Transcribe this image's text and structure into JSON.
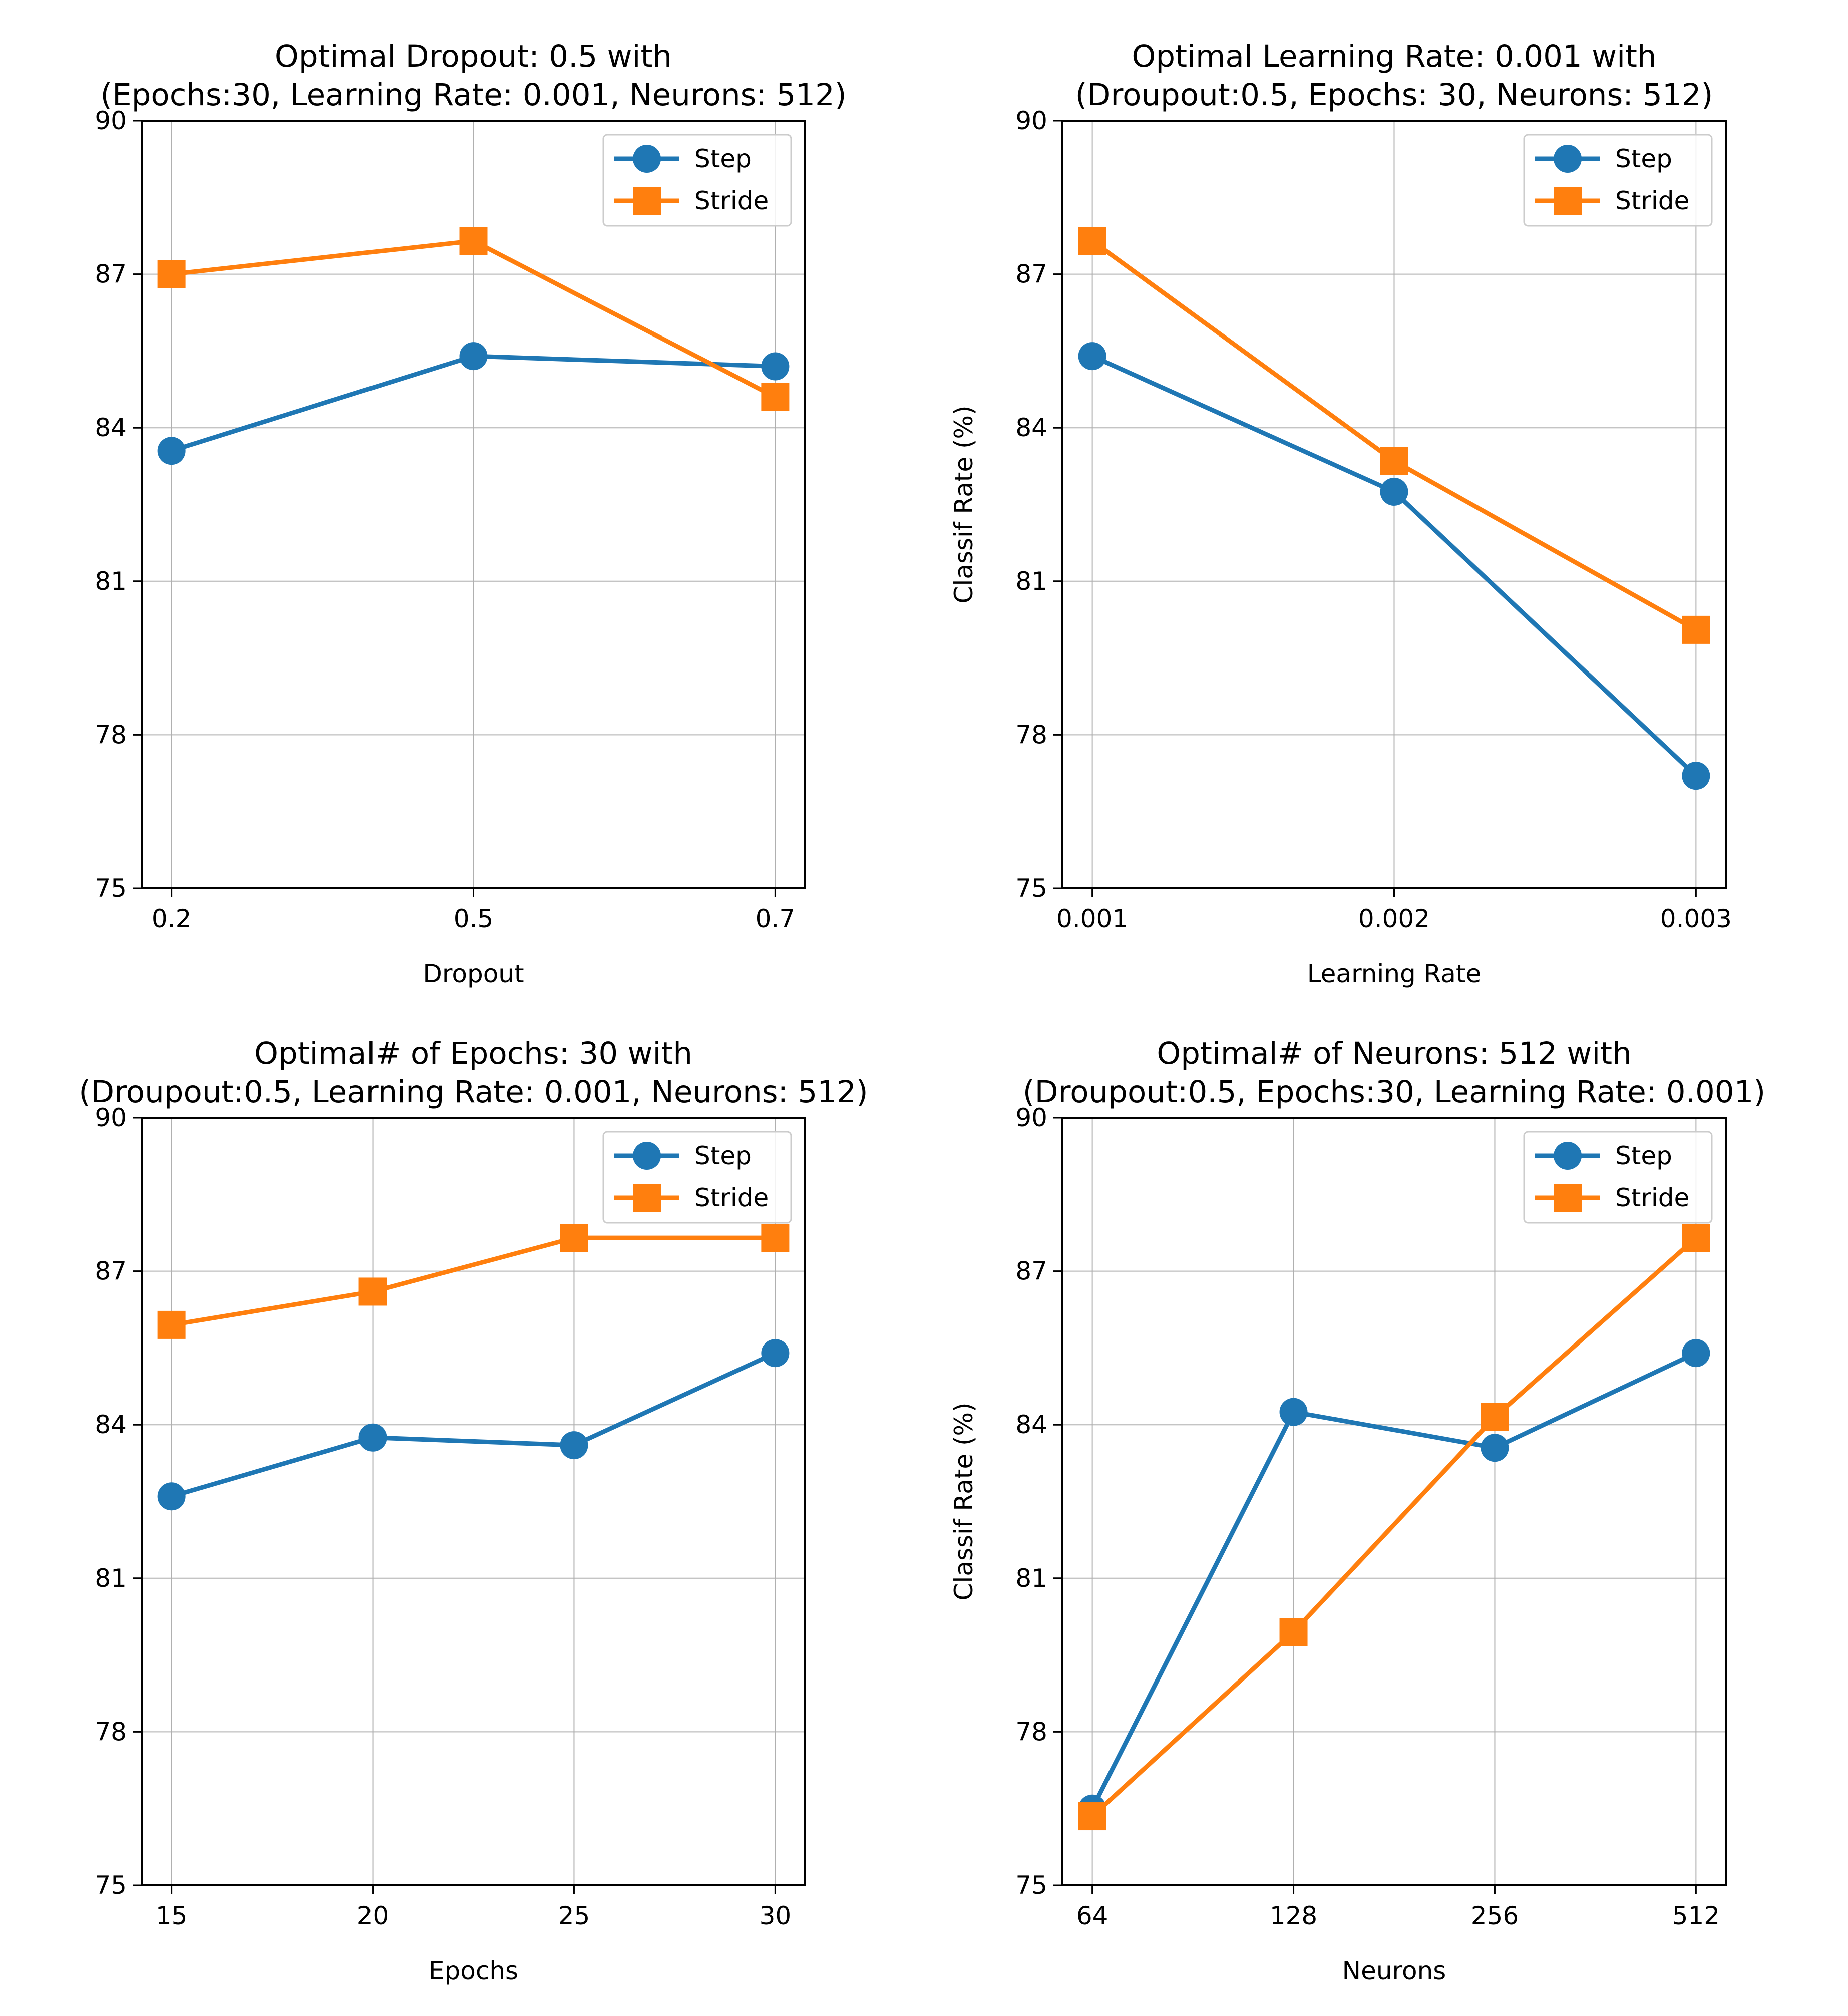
{
  "chart_data": [
    {
      "type": "line",
      "title": [
        "Optimal Dropout: 0.5 with",
        "(Epochs:30, Learning Rate: 0.001, Neurons: 512)"
      ],
      "xlabel": "Dropout",
      "ylabel": "",
      "categories": [
        "0.2",
        "0.5",
        "0.7"
      ],
      "ylim": [
        75,
        90
      ],
      "yticks": [
        75,
        78,
        81,
        84,
        87,
        90
      ],
      "grid": true,
      "legend_position": "top-right",
      "series": [
        {
          "name": "Step",
          "marker": "circle",
          "color": "#1f77b4",
          "values": [
            83.55,
            85.4,
            85.2
          ]
        },
        {
          "name": "Stride",
          "marker": "square",
          "color": "#ff7f0e",
          "values": [
            87.0,
            87.65,
            84.6
          ]
        }
      ]
    },
    {
      "type": "line",
      "title": [
        "Optimal Learning Rate: 0.001 with",
        "(Droupout:0.5, Epochs: 30, Neurons: 512)"
      ],
      "xlabel": "Learning Rate",
      "ylabel": "Classif Rate (%)",
      "categories": [
        "0.001",
        "0.002",
        "0.003"
      ],
      "ylim": [
        75,
        90
      ],
      "yticks": [
        75,
        78,
        81,
        84,
        87,
        90
      ],
      "grid": true,
      "legend_position": "top-right",
      "series": [
        {
          "name": "Step",
          "marker": "circle",
          "color": "#1f77b4",
          "values": [
            85.4,
            82.75,
            77.2
          ]
        },
        {
          "name": "Stride",
          "marker": "square",
          "color": "#ff7f0e",
          "values": [
            87.65,
            83.35,
            80.05
          ]
        }
      ]
    },
    {
      "type": "line",
      "title": [
        "Optimal# of Epochs: 30 with",
        "(Droupout:0.5, Learning Rate: 0.001, Neurons: 512)"
      ],
      "xlabel": "Epochs",
      "ylabel": "",
      "categories": [
        "15",
        "20",
        "25",
        "30"
      ],
      "ylim": [
        75,
        90
      ],
      "yticks": [
        75,
        78,
        81,
        84,
        87,
        90
      ],
      "grid": true,
      "legend_position": "top-right",
      "series": [
        {
          "name": "Step",
          "marker": "circle",
          "color": "#1f77b4",
          "values": [
            82.6,
            83.75,
            83.6,
            85.4
          ]
        },
        {
          "name": "Stride",
          "marker": "square",
          "color": "#ff7f0e",
          "values": [
            85.95,
            86.6,
            87.65,
            87.65
          ]
        }
      ]
    },
    {
      "type": "line",
      "title": [
        "Optimal# of Neurons: 512 with",
        "(Droupout:0.5, Epochs:30, Learning Rate: 0.001)"
      ],
      "xlabel": "Neurons",
      "ylabel": "Classif Rate (%)",
      "categories": [
        "64",
        "128",
        "256",
        "512"
      ],
      "ylim": [
        75,
        90
      ],
      "yticks": [
        75,
        78,
        81,
        84,
        87,
        90
      ],
      "grid": true,
      "legend_position": "top-right",
      "series": [
        {
          "name": "Step",
          "marker": "circle",
          "color": "#1f77b4",
          "values": [
            76.5,
            84.25,
            83.55,
            85.4
          ]
        },
        {
          "name": "Stride",
          "marker": "square",
          "color": "#ff7f0e",
          "values": [
            76.35,
            79.95,
            84.15,
            87.65
          ]
        }
      ]
    }
  ]
}
